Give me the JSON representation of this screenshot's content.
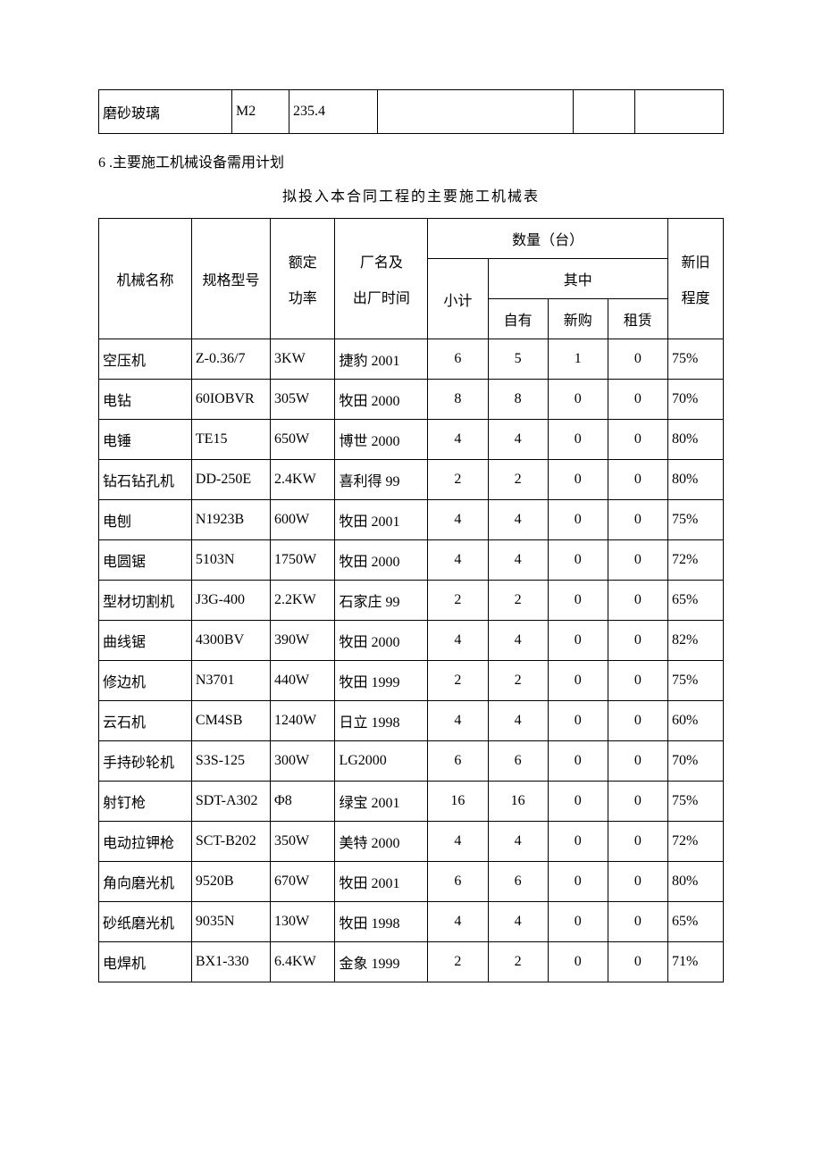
{
  "top_table": {
    "columns_count": 6,
    "row": [
      "磨砂玻璃",
      "M2",
      "235.4",
      "",
      "",
      ""
    ]
  },
  "section_heading": "6 .主要施工机械设备需用计划",
  "main_table": {
    "caption": "拟投入本合同工程的主要施工机械表",
    "header": {
      "machine_name": "机械名称",
      "model": "规格型号",
      "rated_power": "额定",
      "rated_power2": "功率",
      "factory_date": "厂名及",
      "factory_date2": "出厂时间",
      "quantity": "数量（台）",
      "subtotal": "小计",
      "of_which": "其中",
      "owned": "自有",
      "newly_bought": "新购",
      "leased": "租赁",
      "condition": "新旧",
      "condition2": "程度"
    },
    "rows": [
      {
        "name": "空压机",
        "model": "Z-0.36/7",
        "power": "3KW",
        "factory": "捷豹 2001",
        "subtotal": "6",
        "owned": "5",
        "new": "1",
        "leased": "0",
        "cond": "75%"
      },
      {
        "name": "电钻",
        "model": "60IOBVR",
        "power": "305W",
        "factory": "牧田 2000",
        "subtotal": "8",
        "owned": "8",
        "new": "0",
        "leased": "0",
        "cond": "70%"
      },
      {
        "name": "电锤",
        "model": "TE15",
        "power": "650W",
        "factory": "博世 2000",
        "subtotal": "4",
        "owned": "4",
        "new": "0",
        "leased": "0",
        "cond": "80%"
      },
      {
        "name": "钻石钻孔机",
        "model": "DD-250E",
        "power": "2.4KW",
        "factory": "喜利得 99",
        "subtotal": "2",
        "owned": "2",
        "new": "0",
        "leased": "0",
        "cond": "80%"
      },
      {
        "name": "电刨",
        "model": "N1923B",
        "power": "600W",
        "factory": "牧田 2001",
        "subtotal": "4",
        "owned": "4",
        "new": "0",
        "leased": "0",
        "cond": "75%"
      },
      {
        "name": "电圆锯",
        "model": "5103N",
        "power": "1750W",
        "factory": "牧田 2000",
        "subtotal": "4",
        "owned": "4",
        "new": "0",
        "leased": "0",
        "cond": "72%"
      },
      {
        "name": "型材切割机",
        "model": "J3G-400",
        "power": "2.2KW",
        "factory": "石家庄 99",
        "subtotal": "2",
        "owned": "2",
        "new": "0",
        "leased": "0",
        "cond": "65%"
      },
      {
        "name": "曲线锯",
        "model": "4300BV",
        "power": "390W",
        "factory": "牧田 2000",
        "subtotal": "4",
        "owned": "4",
        "new": "0",
        "leased": "0",
        "cond": "82%"
      },
      {
        "name": "修边机",
        "model": "N3701",
        "power": "440W",
        "factory": "牧田 1999",
        "subtotal": "2",
        "owned": "2",
        "new": "0",
        "leased": "0",
        "cond": "75%"
      },
      {
        "name": "云石机",
        "model": "CM4SB",
        "power": "1240W",
        "factory": "日立 1998",
        "subtotal": "4",
        "owned": "4",
        "new": "0",
        "leased": "0",
        "cond": "60%"
      },
      {
        "name": "手持砂轮机",
        "model": "S3S-125",
        "power": "300W",
        "factory": "LG2000",
        "subtotal": "6",
        "owned": "6",
        "new": "0",
        "leased": "0",
        "cond": "70%"
      },
      {
        "name": "射钉枪",
        "model": "SDT-A302",
        "power": "Φ8",
        "factory": "绿宝 2001",
        "subtotal": "16",
        "owned": "16",
        "new": "0",
        "leased": "0",
        "cond": "75%"
      },
      {
        "name": "电动拉钾枪",
        "model": "SCT-B202",
        "power": "350W",
        "factory": "美特 2000",
        "subtotal": "4",
        "owned": "4",
        "new": "0",
        "leased": "0",
        "cond": "72%"
      },
      {
        "name": "角向磨光机",
        "model": "9520B",
        "power": "670W",
        "factory": "牧田 2001",
        "subtotal": "6",
        "owned": "6",
        "new": "0",
        "leased": "0",
        "cond": "80%"
      },
      {
        "name": "砂纸磨光机",
        "model": "9035N",
        "power": "130W",
        "factory": "牧田 1998",
        "subtotal": "4",
        "owned": "4",
        "new": "0",
        "leased": "0",
        "cond": "65%"
      },
      {
        "name": "电焊机",
        "model": "BX1-330",
        "power": "6.4KW",
        "factory": "金象 1999",
        "subtotal": "2",
        "owned": "2",
        "new": "0",
        "leased": "0",
        "cond": "71%"
      }
    ]
  }
}
